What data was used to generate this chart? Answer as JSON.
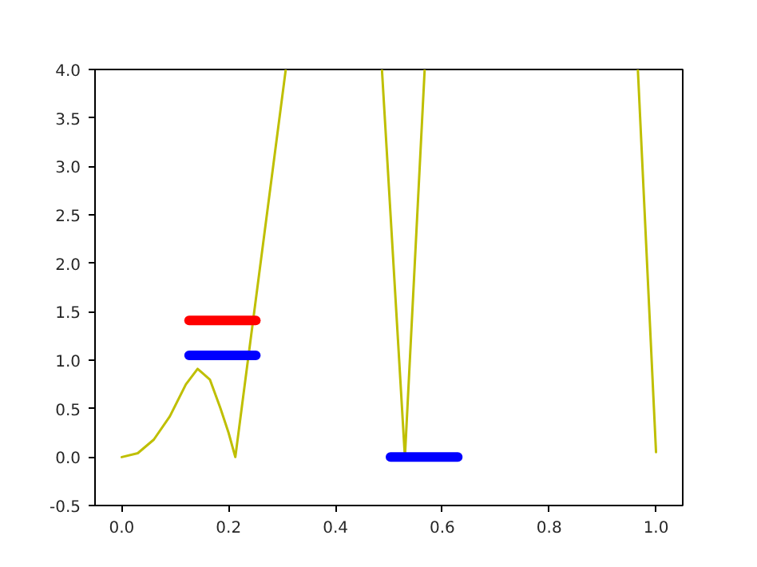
{
  "chart_data": {
    "type": "line",
    "series": [
      {
        "color": "#bfbf00",
        "x": [
          0,
          0.03,
          0.06,
          0.09,
          0.12,
          0.142,
          0.165,
          0.185,
          0.2,
          0.2126,
          0.307,
          0.4,
          0.487,
          0.53,
          0.567,
          0.8,
          0.966,
          1.0
        ],
        "values": [
          0,
          0.04,
          0.18,
          0.42,
          0.75,
          0.91,
          0.8,
          0.5,
          0.25,
          0,
          4.0,
          null,
          4.0,
          0,
          4.0,
          null,
          4.0,
          0.05
        ]
      },
      {
        "color": "#ff0000",
        "x": [
          0.126,
          0.251
        ],
        "values": [
          1.41,
          1.41
        ]
      },
      {
        "color": "#0000ff",
        "x": [
          0.126,
          0.251,
          0.38,
          0.503,
          0.629
        ],
        "values": [
          1.05,
          1.05,
          null,
          0,
          0
        ]
      }
    ],
    "xlim": [
      -0.05,
      1.05
    ],
    "ylim": [
      -0.5,
      4.0
    ],
    "xticks": [
      {
        "value": 0,
        "label": "0.0"
      },
      0.2,
      0.4,
      0.6,
      0.8,
      {
        "value": 1,
        "label": "1.0"
      }
    ],
    "yticks": [
      -0.5,
      {
        "value": 0,
        "label": "0.0"
      },
      0.5,
      {
        "value": 1,
        "label": "1.0"
      },
      1.5,
      {
        "value": 2,
        "label": "2.0"
      },
      2.5,
      {
        "value": 3,
        "label": "3.0"
      },
      3.5,
      {
        "value": 4,
        "label": "4.0"
      }
    ]
  }
}
